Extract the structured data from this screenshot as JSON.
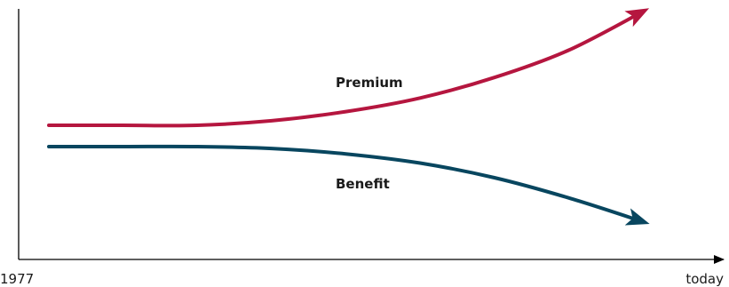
{
  "chart_data": {
    "type": "line",
    "title": "",
    "xlabel": "",
    "ylabel": "",
    "x_tick_labels": [
      "1977",
      "today"
    ],
    "grid": false,
    "legend": "none",
    "series": [
      {
        "name": "Premium",
        "color": "#b5163f",
        "trend": "rising",
        "values": [
          0,
          0,
          0,
          0.04,
          0.12,
          0.24,
          0.42,
          0.66,
          1.0
        ]
      },
      {
        "name": "Benefit",
        "color": "#08465f",
        "trend": "falling",
        "values": [
          0,
          0,
          0,
          -0.02,
          -0.08,
          -0.18,
          -0.34,
          -0.56,
          -0.82
        ]
      }
    ]
  }
}
